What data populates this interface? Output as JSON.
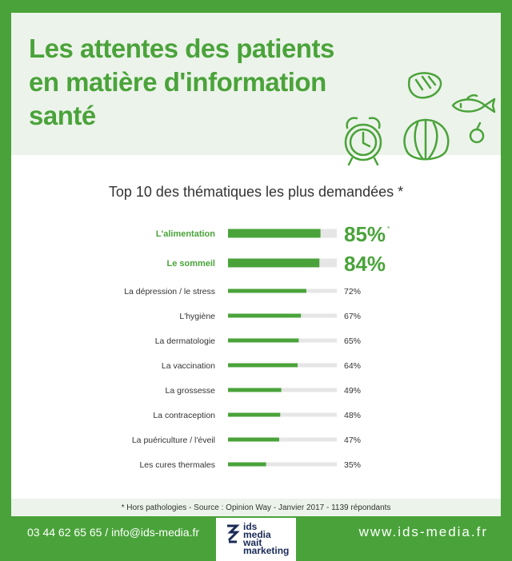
{
  "header": {
    "title_lines": [
      "Les attentes des patients",
      "en matière d'information",
      "santé"
    ]
  },
  "chart_data": {
    "type": "bar",
    "orientation": "horizontal",
    "title": "Top 10 des thématiques les plus demandées *",
    "categories": [
      "L'alimentation",
      "Le sommeil",
      "La dépression / le stress",
      "L'hygiène",
      "La dermatologie",
      "La vaccination",
      "La grossesse",
      "La contraception",
      "La puériculture / l'éveil",
      "Les cures thermales"
    ],
    "values": [
      85,
      84,
      72,
      67,
      65,
      64,
      49,
      48,
      47,
      35
    ],
    "value_labels": [
      "85%",
      "84%",
      "72%",
      "67%",
      "65%",
      "64%",
      "49%",
      "48%",
      "47%",
      "35%"
    ],
    "highlight_count": 2,
    "highlight_asterisk": "*",
    "xlim": [
      0,
      100
    ],
    "colors": {
      "bar": "#4aa33a",
      "track": "#e6e6e6",
      "highlight_text": "#4aa33a"
    }
  },
  "footnote": "* Hors pathologies - Source : Opinion Way - Janvier 2017 - 1139 répondants",
  "footer": {
    "contact": "03 44 62 65 65 / info@ids-media.fr",
    "website": "www.ids-media.fr",
    "logo_lines": [
      "ids",
      "media",
      "wait",
      "marketing"
    ]
  },
  "icons": [
    "steak-icon",
    "fish-icon",
    "plum-icon",
    "alarm-clock-icon",
    "cabbage-icon"
  ]
}
